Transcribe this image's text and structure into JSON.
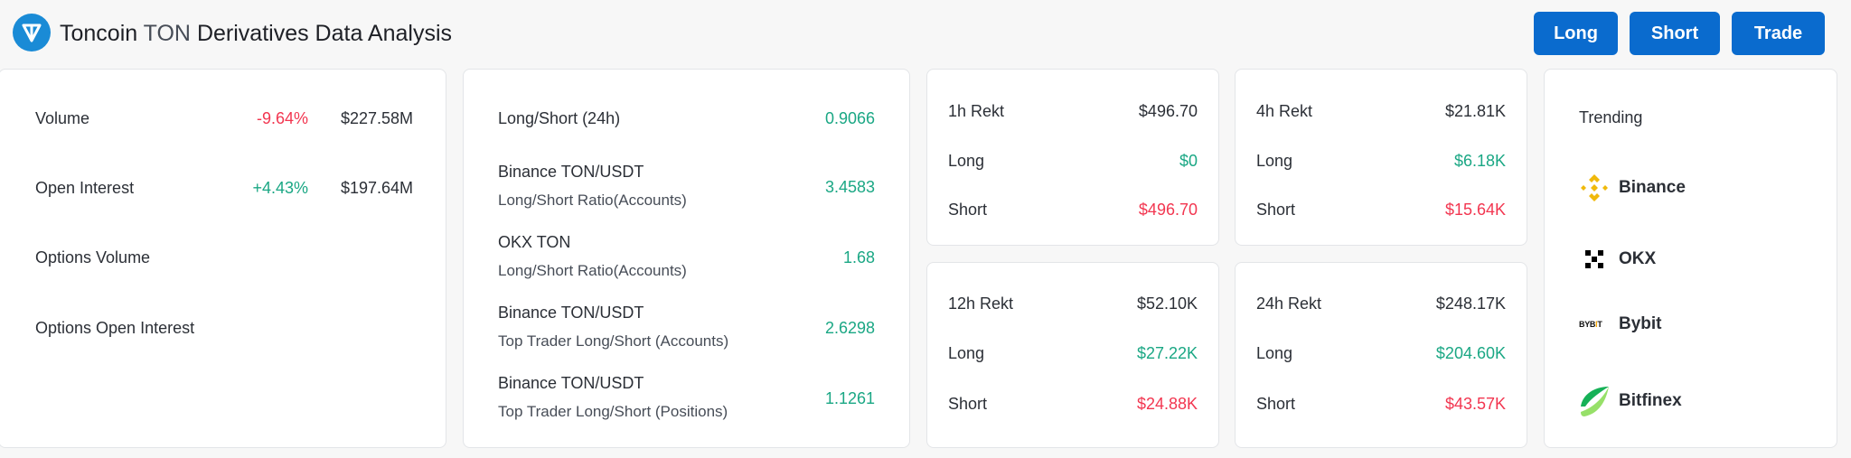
{
  "header": {
    "coin": "Toncoin",
    "symbol": "TON",
    "title_rest": "Derivatives Data Analysis",
    "buttons": [
      "Long",
      "Short",
      "Trade"
    ]
  },
  "overview": [
    {
      "label": "Volume",
      "change": "-9.64%",
      "value": "$227.58M"
    },
    {
      "label": "Open Interest",
      "change": "+4.43%",
      "value": "$197.64M"
    },
    {
      "label": "Options Volume"
    },
    {
      "label": "Options Open Interest"
    }
  ],
  "ratios": [
    {
      "label": "Long/Short (24h)",
      "value": "0.9066"
    },
    {
      "label": "Binance TON/USDT",
      "sub": "Long/Short Ratio(Accounts)",
      "value": "3.4583"
    },
    {
      "label": "OKX TON",
      "sub": "Long/Short Ratio(Accounts)",
      "value": "1.68"
    },
    {
      "label": "Binance TON/USDT",
      "sub": "Top Trader Long/Short (Accounts)",
      "value": "2.6298"
    },
    {
      "label": "Binance TON/USDT",
      "sub": "Top Trader Long/Short (Positions)",
      "value": "1.1261"
    }
  ],
  "rekt": [
    {
      "label": "1h Rekt",
      "total": "$496.70",
      "long_label": "Long",
      "long": "$0",
      "short_label": "Short",
      "short": "$496.70"
    },
    {
      "label": "4h Rekt",
      "total": "$21.81K",
      "long_label": "Long",
      "long": "$6.18K",
      "short_label": "Short",
      "short": "$15.64K"
    },
    {
      "label": "12h Rekt",
      "total": "$52.10K",
      "long_label": "Long",
      "long": "$27.22K",
      "short_label": "Short",
      "short": "$24.88K"
    },
    {
      "label": "24h Rekt",
      "total": "$248.17K",
      "long_label": "Long",
      "long": "$204.60K",
      "short_label": "Short",
      "short": "$43.57K"
    }
  ],
  "trending": {
    "title": "Trending",
    "items": [
      {
        "name": "Binance",
        "icon": "binance-icon"
      },
      {
        "name": "OKX",
        "icon": "okx-icon"
      },
      {
        "name": "Bybit",
        "icon": "bybit-icon",
        "logo_text": "BYBIT"
      },
      {
        "name": "Bitfinex",
        "icon": "bitfinex-icon"
      }
    ]
  },
  "colors": {
    "accent": "#0a6bce",
    "negative": "#f23650",
    "positive": "#1aa784"
  }
}
